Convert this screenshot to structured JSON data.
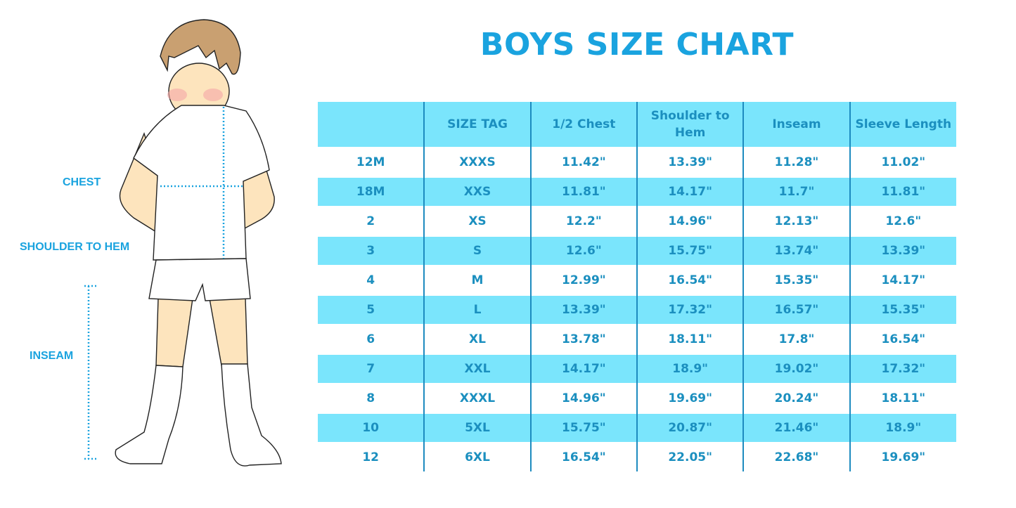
{
  "title": "BOYS SIZE CHART",
  "figure_labels": {
    "chest": "CHEST",
    "shoulder_to_hem": "SHOULDER TO HEM",
    "inseam": "INSEAM"
  },
  "colors": {
    "accent": "#1aa3df",
    "row_fill": "#7ae5fc",
    "text": "#1b8fbf"
  },
  "table": {
    "headers": [
      "",
      "SIZE TAG",
      "1/2 Chest",
      "Shoulder to Hem",
      "Inseam",
      "Sleeve Length"
    ],
    "rows": [
      [
        "12M",
        "XXXS",
        "11.42\"",
        "13.39\"",
        "11.28\"",
        "11.02\""
      ],
      [
        "18M",
        "XXS",
        "11.81\"",
        "14.17\"",
        "11.7\"",
        "11.81\""
      ],
      [
        "2",
        "XS",
        "12.2\"",
        "14.96\"",
        "12.13\"",
        "12.6\""
      ],
      [
        "3",
        "S",
        "12.6\"",
        "15.75\"",
        "13.74\"",
        "13.39\""
      ],
      [
        "4",
        "M",
        "12.99\"",
        "16.54\"",
        "15.35\"",
        "14.17\""
      ],
      [
        "5",
        "L",
        "13.39\"",
        "17.32\"",
        "16.57\"",
        "15.35\""
      ],
      [
        "6",
        "XL",
        "13.78\"",
        "18.11\"",
        "17.8\"",
        "16.54\""
      ],
      [
        "7",
        "XXL",
        "14.17\"",
        "18.9\"",
        "19.02\"",
        "17.32\""
      ],
      [
        "8",
        "XXXL",
        "14.96\"",
        "19.69\"",
        "20.24\"",
        "18.11\""
      ],
      [
        "10",
        "5XL",
        "15.75\"",
        "20.87\"",
        "21.46\"",
        "18.9\""
      ],
      [
        "12",
        "6XL",
        "16.54\"",
        "22.05\"",
        "22.68\"",
        "19.69\""
      ]
    ]
  }
}
